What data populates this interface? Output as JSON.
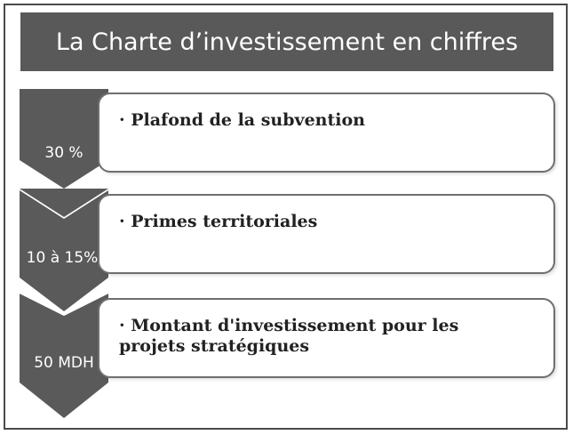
{
  "title": "La Charte d’investissement en chiffres",
  "steps": [
    {
      "value": "30 %",
      "label": "· Plafond de la subvention"
    },
    {
      "value": "10 à 15%",
      "label": "· Primes territoriales"
    },
    {
      "value": "50 MDH",
      "label": "· Montant d'investissement pour les projets stratégiques"
    }
  ],
  "colors": {
    "title_background": "#595959",
    "chevron": "#5a5a5a",
    "card_border": "#6f6f6f"
  }
}
